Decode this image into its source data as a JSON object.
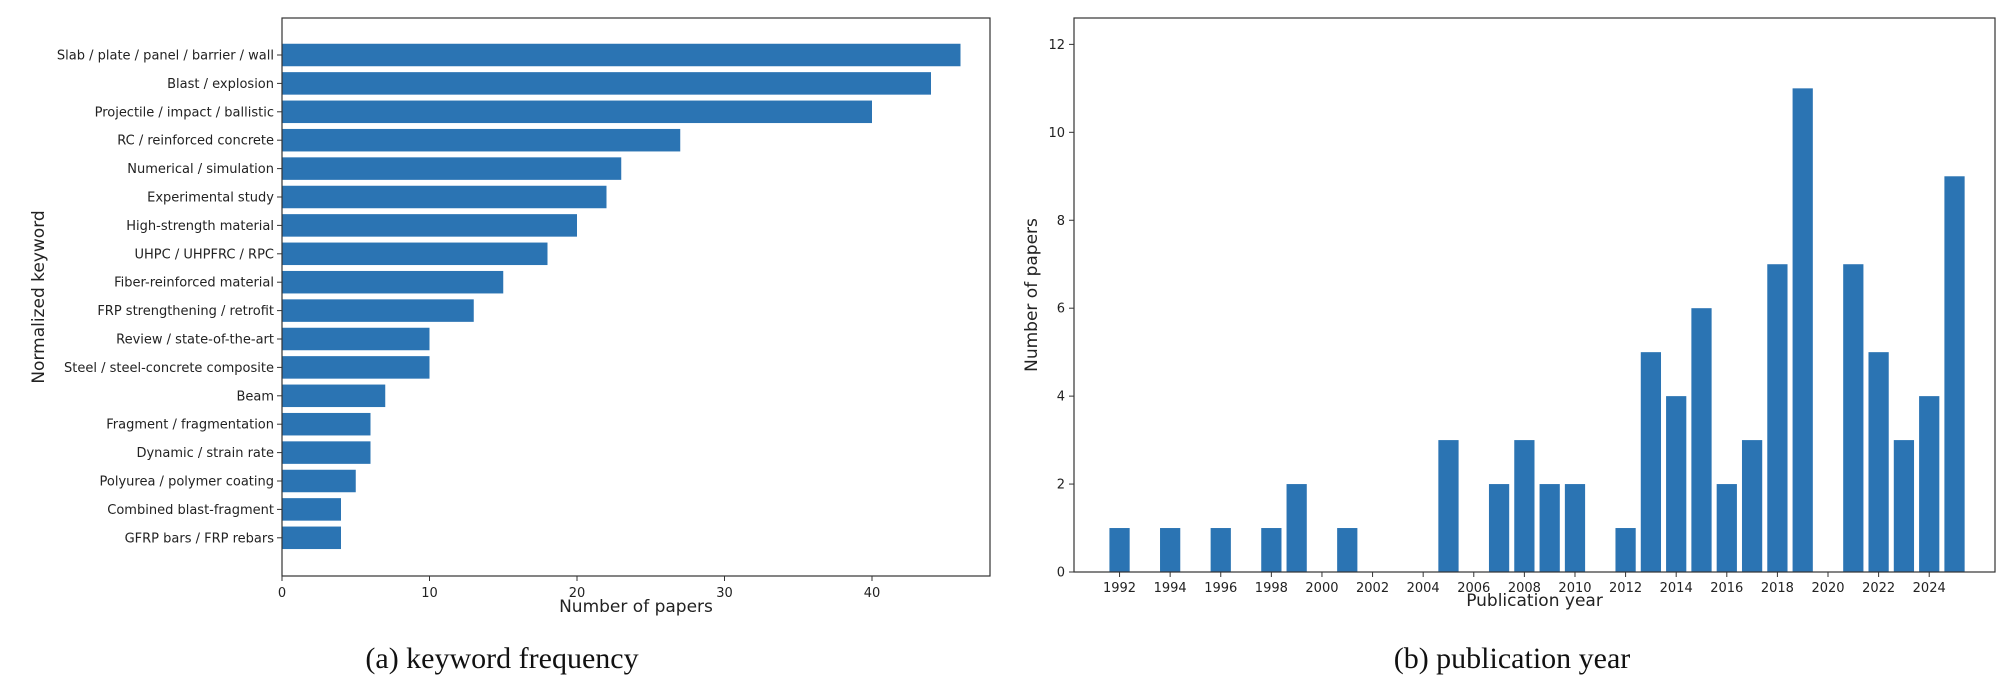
{
  "colors": {
    "bar": "#2b74b3",
    "axis": "#333333",
    "text": "#222222"
  },
  "chart_data": [
    {
      "type": "bar",
      "orientation": "horizontal",
      "caption": "(a) keyword frequency",
      "xlabel": "Number of papers",
      "ylabel": "Normalized keyword",
      "xlim": [
        0,
        48
      ],
      "xticks": [
        0,
        10,
        20,
        30,
        40
      ],
      "grid": false,
      "categories": [
        "Slab / plate / panel / barrier / wall",
        "Blast / explosion",
        "Projectile / impact / ballistic",
        "RC / reinforced concrete",
        "Numerical / simulation",
        "Experimental study",
        "High-strength material",
        "UHPC / UHPFRC / RPC",
        "Fiber-reinforced material",
        "FRP strengthening / retrofit",
        "Review / state-of-the-art",
        "Steel / steel-concrete composite",
        "Beam",
        "Fragment / fragmentation",
        "Dynamic / strain rate",
        "Polyurea / polymer coating",
        "Combined blast-fragment",
        "GFRP bars / FRP rebars"
      ],
      "values": [
        46,
        44,
        40,
        27,
        23,
        22,
        20,
        18,
        15,
        13,
        10,
        10,
        7,
        6,
        6,
        5,
        4,
        4
      ]
    },
    {
      "type": "bar",
      "orientation": "vertical",
      "caption": "(b) publication year",
      "xlabel": "Publication year",
      "ylabel": "Number of papers",
      "ylim": [
        0,
        12.6
      ],
      "yticks": [
        0,
        2,
        4,
        6,
        8,
        10,
        12
      ],
      "xtick_labels": [
        "1992",
        "1994",
        "1996",
        "1998",
        "2000",
        "2002",
        "2004",
        "2006",
        "2008",
        "2010",
        "2012",
        "2014",
        "2016",
        "2018",
        "2020",
        "2022",
        "2024"
      ],
      "xlim": [
        1990.2,
        2026.6
      ],
      "grid": false,
      "x": [
        1992,
        1994,
        1996,
        1998,
        1999,
        2001,
        2005,
        2007,
        2008,
        2009,
        2010,
        2012,
        2013,
        2014,
        2015,
        2016,
        2017,
        2018,
        2019,
        2021,
        2022,
        2023,
        2024,
        2025
      ],
      "values": [
        1,
        1,
        1,
        1,
        2,
        1,
        3,
        2,
        3,
        2,
        2,
        1,
        5,
        4,
        6,
        2,
        3,
        7,
        11,
        7,
        5,
        3,
        4,
        9
      ]
    }
  ]
}
